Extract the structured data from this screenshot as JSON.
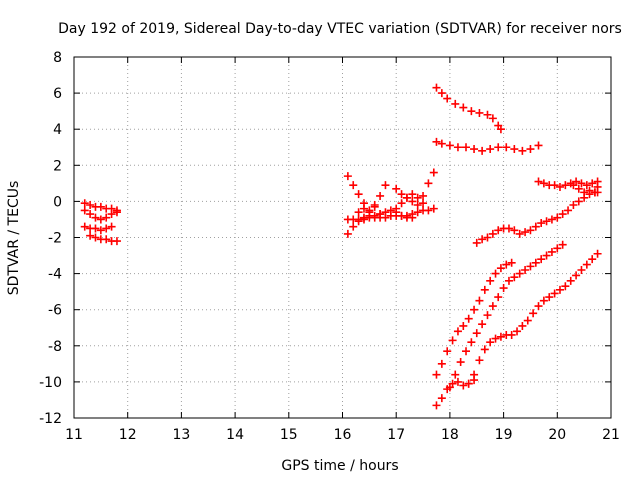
{
  "chart_data": {
    "type": "scatter",
    "title": "Day 192 of 2019, Sidereal Day-to-day VTEC variation (SDTVAR) for receiver nors",
    "xlabel": "GPS time / hours",
    "ylabel": "SDTVAR / TECUs",
    "xlim": [
      11,
      21
    ],
    "ylim": [
      -12,
      8
    ],
    "xticks": [
      "11",
      "12",
      "13",
      "14",
      "15",
      "16",
      "17",
      "18",
      "19",
      "20",
      "21"
    ],
    "yticks": [
      "-12",
      "-10",
      "-8",
      "-6",
      "-4",
      "-2",
      "0",
      "2",
      "4",
      "6",
      "8"
    ],
    "grid": true,
    "marker": "+",
    "color": "#ff0000",
    "series": [
      {
        "values": [
          [
            11.2,
            -0.1
          ],
          [
            11.3,
            -0.2
          ],
          [
            11.4,
            -0.3
          ],
          [
            11.5,
            -0.3
          ],
          [
            11.6,
            -0.4
          ],
          [
            11.7,
            -0.4
          ],
          [
            11.8,
            -0.5
          ]
        ]
      },
      {
        "values": [
          [
            11.2,
            -0.5
          ],
          [
            11.3,
            -0.7
          ],
          [
            11.4,
            -0.9
          ],
          [
            11.5,
            -1.0
          ],
          [
            11.6,
            -0.9
          ],
          [
            11.7,
            -0.7
          ],
          [
            11.8,
            -0.6
          ]
        ]
      },
      {
        "values": [
          [
            11.2,
            -1.4
          ],
          [
            11.3,
            -1.5
          ],
          [
            11.4,
            -1.5
          ],
          [
            11.5,
            -1.6
          ],
          [
            11.6,
            -1.5
          ],
          [
            11.7,
            -1.4
          ]
        ]
      },
      {
        "values": [
          [
            11.3,
            -1.9
          ],
          [
            11.4,
            -2.0
          ],
          [
            11.5,
            -2.1
          ],
          [
            11.6,
            -2.1
          ],
          [
            11.7,
            -2.2
          ],
          [
            11.8,
            -2.2
          ]
        ]
      },
      {
        "values": [
          [
            16.1,
            1.4
          ],
          [
            16.2,
            0.9
          ],
          [
            16.3,
            0.4
          ],
          [
            16.4,
            -0.1
          ],
          [
            16.5,
            -0.5
          ],
          [
            16.6,
            -0.2
          ],
          [
            16.7,
            0.3
          ],
          [
            16.8,
            0.9
          ]
        ]
      },
      {
        "values": [
          [
            16.1,
            -1.8
          ],
          [
            16.2,
            -1.4
          ],
          [
            16.3,
            -1.1
          ],
          [
            16.4,
            -0.9
          ],
          [
            16.5,
            -0.8
          ],
          [
            16.6,
            -0.8
          ],
          [
            16.7,
            -0.7
          ],
          [
            16.8,
            -0.6
          ],
          [
            16.9,
            -0.5
          ],
          [
            17.0,
            -0.6
          ],
          [
            17.1,
            -0.8
          ],
          [
            17.2,
            -0.8
          ],
          [
            17.3,
            -0.7
          ],
          [
            17.4,
            -0.6
          ],
          [
            17.5,
            -0.5
          ],
          [
            17.6,
            -0.5
          ],
          [
            17.7,
            -0.4
          ]
        ]
      },
      {
        "values": [
          [
            16.1,
            -1.0
          ],
          [
            16.2,
            -1.0
          ],
          [
            16.3,
            -1.0
          ],
          [
            16.4,
            -1.0
          ],
          [
            16.5,
            -0.9
          ],
          [
            16.6,
            -0.9
          ],
          [
            16.7,
            -0.9
          ],
          [
            16.8,
            -0.9
          ],
          [
            16.9,
            -0.8
          ],
          [
            17.0,
            -0.8
          ],
          [
            17.1,
            -0.8
          ],
          [
            17.2,
            -0.9
          ],
          [
            17.3,
            -0.9
          ]
        ]
      },
      {
        "values": [
          [
            16.3,
            -0.6
          ],
          [
            16.4,
            -0.4
          ],
          [
            16.5,
            -0.6
          ],
          [
            16.6,
            -0.3
          ],
          [
            16.7,
            -0.7
          ],
          [
            17.0,
            0.7
          ],
          [
            17.1,
            0.4
          ],
          [
            17.2,
            0.2
          ],
          [
            17.3,
            0.0
          ],
          [
            17.4,
            -0.2
          ],
          [
            17.5,
            0.3
          ],
          [
            17.6,
            1.0
          ],
          [
            17.7,
            1.6
          ]
        ]
      },
      {
        "values": [
          [
            17.0,
            -0.4
          ],
          [
            17.1,
            -0.1
          ],
          [
            17.2,
            0.2
          ],
          [
            17.3,
            0.4
          ],
          [
            17.4,
            0.2
          ],
          [
            17.5,
            -0.1
          ]
        ]
      },
      {
        "values": [
          [
            17.75,
            6.3
          ],
          [
            17.85,
            6.0
          ],
          [
            17.95,
            5.7
          ],
          [
            18.1,
            5.4
          ],
          [
            18.25,
            5.2
          ],
          [
            18.4,
            5.0
          ],
          [
            18.55,
            4.9
          ],
          [
            18.7,
            4.8
          ],
          [
            18.8,
            4.6
          ],
          [
            18.9,
            4.2
          ],
          [
            18.95,
            4.0
          ]
        ]
      },
      {
        "values": [
          [
            17.75,
            3.3
          ],
          [
            17.85,
            3.2
          ],
          [
            18.0,
            3.1
          ],
          [
            18.15,
            3.0
          ],
          [
            18.3,
            3.0
          ],
          [
            18.45,
            2.9
          ],
          [
            18.6,
            2.8
          ],
          [
            18.75,
            2.9
          ],
          [
            18.9,
            3.0
          ],
          [
            19.05,
            3.0
          ],
          [
            19.2,
            2.9
          ],
          [
            19.35,
            2.8
          ],
          [
            19.5,
            2.9
          ],
          [
            19.65,
            3.1
          ]
        ]
      },
      {
        "values": [
          [
            19.65,
            1.1
          ],
          [
            19.75,
            1.0
          ],
          [
            19.85,
            0.9
          ],
          [
            19.95,
            0.9
          ],
          [
            20.05,
            0.8
          ],
          [
            20.15,
            0.9
          ],
          [
            20.25,
            1.0
          ],
          [
            20.35,
            1.1
          ],
          [
            20.45,
            1.0
          ],
          [
            20.55,
            0.9
          ],
          [
            20.65,
            1.0
          ],
          [
            20.75,
            1.1
          ]
        ]
      },
      {
        "values": [
          [
            18.5,
            -2.3
          ],
          [
            18.6,
            -2.1
          ],
          [
            18.7,
            -2.0
          ],
          [
            18.8,
            -1.8
          ],
          [
            18.9,
            -1.6
          ],
          [
            19.0,
            -1.5
          ],
          [
            19.1,
            -1.5
          ],
          [
            19.2,
            -1.6
          ],
          [
            19.3,
            -1.8
          ],
          [
            19.4,
            -1.7
          ],
          [
            19.5,
            -1.6
          ],
          [
            19.6,
            -1.4
          ],
          [
            19.7,
            -1.2
          ],
          [
            19.8,
            -1.1
          ],
          [
            19.9,
            -1.0
          ],
          [
            20.0,
            -0.9
          ],
          [
            20.1,
            -0.7
          ],
          [
            20.2,
            -0.5
          ],
          [
            20.3,
            -0.2
          ],
          [
            20.4,
            0.0
          ],
          [
            20.5,
            0.2
          ],
          [
            20.6,
            0.4
          ],
          [
            20.7,
            0.5
          ],
          [
            20.75,
            0.5
          ]
        ]
      },
      {
        "values": [
          [
            20.3,
            0.9
          ],
          [
            20.4,
            0.7
          ],
          [
            20.5,
            0.5
          ],
          [
            20.6,
            0.6
          ],
          [
            20.7,
            0.5
          ],
          [
            20.75,
            0.8
          ]
        ]
      },
      {
        "values": [
          [
            17.75,
            -9.6
          ],
          [
            17.85,
            -9.0
          ],
          [
            17.95,
            -8.3
          ],
          [
            18.05,
            -7.7
          ],
          [
            18.15,
            -7.2
          ],
          [
            18.25,
            -6.9
          ],
          [
            18.35,
            -6.5
          ],
          [
            18.45,
            -6.0
          ],
          [
            18.55,
            -5.5
          ],
          [
            18.65,
            -4.9
          ],
          [
            18.75,
            -4.4
          ],
          [
            18.85,
            -4.0
          ],
          [
            18.95,
            -3.7
          ],
          [
            19.05,
            -3.5
          ],
          [
            19.15,
            -3.4
          ]
        ]
      },
      {
        "values": [
          [
            17.75,
            -11.3
          ],
          [
            17.85,
            -10.9
          ],
          [
            17.95,
            -10.4
          ],
          [
            18.05,
            -10.1
          ],
          [
            18.15,
            -10.0
          ],
          [
            18.25,
            -10.2
          ],
          [
            18.35,
            -10.1
          ],
          [
            18.45,
            -9.9
          ]
        ]
      },
      {
        "values": [
          [
            18.0,
            -10.3
          ],
          [
            18.1,
            -9.6
          ],
          [
            18.2,
            -8.9
          ],
          [
            18.3,
            -8.3
          ],
          [
            18.4,
            -7.8
          ],
          [
            18.5,
            -7.3
          ],
          [
            18.6,
            -6.8
          ],
          [
            18.7,
            -6.3
          ],
          [
            18.8,
            -5.8
          ],
          [
            18.9,
            -5.3
          ],
          [
            19.0,
            -4.8
          ],
          [
            19.1,
            -4.4
          ],
          [
            19.2,
            -4.2
          ],
          [
            19.3,
            -4.0
          ],
          [
            19.4,
            -3.8
          ],
          [
            19.5,
            -3.6
          ],
          [
            19.6,
            -3.4
          ],
          [
            19.7,
            -3.2
          ],
          [
            19.8,
            -3.0
          ],
          [
            19.9,
            -2.8
          ],
          [
            20.0,
            -2.6
          ],
          [
            20.1,
            -2.4
          ]
        ]
      },
      {
        "values": [
          [
            18.35,
            -10.1
          ],
          [
            18.45,
            -9.6
          ],
          [
            18.55,
            -8.8
          ],
          [
            18.65,
            -8.2
          ],
          [
            18.75,
            -7.8
          ],
          [
            18.85,
            -7.6
          ],
          [
            18.95,
            -7.5
          ],
          [
            19.05,
            -7.4
          ],
          [
            19.15,
            -7.4
          ],
          [
            19.25,
            -7.2
          ],
          [
            19.35,
            -6.9
          ],
          [
            19.45,
            -6.6
          ],
          [
            19.55,
            -6.2
          ],
          [
            19.65,
            -5.8
          ],
          [
            19.75,
            -5.5
          ],
          [
            19.85,
            -5.3
          ],
          [
            19.95,
            -5.1
          ],
          [
            20.05,
            -4.9
          ],
          [
            20.15,
            -4.7
          ],
          [
            20.25,
            -4.4
          ],
          [
            20.35,
            -4.1
          ],
          [
            20.45,
            -3.8
          ],
          [
            20.55,
            -3.5
          ],
          [
            20.65,
            -3.2
          ],
          [
            20.75,
            -2.9
          ]
        ]
      }
    ]
  }
}
